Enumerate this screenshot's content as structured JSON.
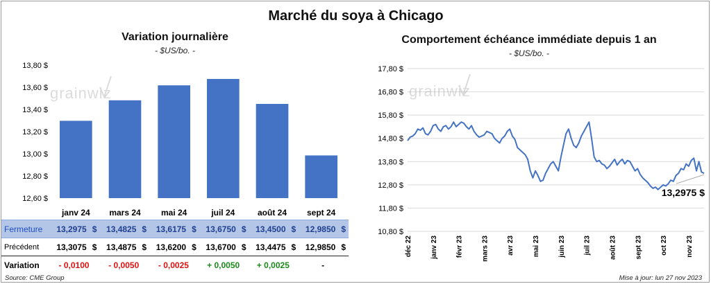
{
  "title": "Marché du soya à Chicago",
  "left_chart": {
    "title": "Variation  journalière",
    "subtitle": "- $US/bo. -"
  },
  "right_chart": {
    "title": "Comportement  échéance immédiate depuis 1 an",
    "subtitle": "- $US/bo. -",
    "last_value_label": "13,2975 $"
  },
  "watermark": "grainwiz",
  "chart_data": [
    {
      "type": "bar",
      "categories": [
        "janv 24",
        "mars 24",
        "mai 24",
        "juil 24",
        "août 24",
        "sept 24"
      ],
      "values": [
        13.2975,
        13.4825,
        13.6175,
        13.675,
        13.45,
        12.985
      ],
      "ylim": [
        12.6,
        13.8
      ],
      "yticks": [
        "12,60 $",
        "12,80 $",
        "13,00 $",
        "13,20 $",
        "13,40 $",
        "13,60 $",
        "13,80 $"
      ],
      "ytick_values": [
        12.6,
        12.8,
        13.0,
        13.2,
        13.4,
        13.6,
        13.8
      ],
      "color": "#4472c4",
      "grid": false
    },
    {
      "type": "line",
      "x_tick_labels": [
        "déc 22",
        "janv 23",
        "févr 23",
        "mars 23",
        "avr 23",
        "mai 23",
        "juin 23",
        "juil 23",
        "août 23",
        "sept 23",
        "oct 23",
        "nov 23"
      ],
      "ylim": [
        10.8,
        17.8
      ],
      "yticks": [
        "10,80 $",
        "11,80 $",
        "12,80 $",
        "13,80 $",
        "14,80 $",
        "15,80 $",
        "16,80 $",
        "17,80 $"
      ],
      "ytick_values": [
        10.8,
        11.8,
        12.8,
        13.8,
        14.8,
        15.8,
        16.8,
        17.8
      ],
      "color": "#4472c4",
      "grid": true,
      "x_range": [
        0,
        11.6
      ],
      "series": [
        {
          "x": [
            0.0,
            0.1,
            0.2,
            0.3,
            0.4,
            0.5,
            0.6,
            0.7,
            0.8,
            0.9,
            1.0,
            1.1,
            1.2,
            1.3,
            1.4,
            1.5,
            1.6,
            1.7,
            1.8,
            1.9,
            2.0,
            2.1,
            2.2,
            2.3,
            2.4,
            2.5,
            2.6,
            2.7,
            2.8,
            2.9,
            3.0,
            3.1,
            3.2,
            3.3,
            3.4,
            3.5,
            3.6,
            3.7,
            3.8,
            3.9,
            4.0,
            4.1,
            4.2,
            4.3,
            4.4,
            4.5,
            4.6,
            4.7,
            4.8,
            4.9,
            5.0,
            5.1,
            5.2,
            5.3,
            5.4,
            5.5,
            5.6,
            5.7,
            5.8,
            5.9,
            6.0,
            6.1,
            6.2,
            6.3,
            6.4,
            6.5,
            6.6,
            6.7,
            6.8,
            6.9,
            7.0,
            7.1,
            7.2,
            7.3,
            7.4,
            7.5,
            7.6,
            7.7,
            7.8,
            7.9,
            8.0,
            8.1,
            8.2,
            8.3,
            8.4,
            8.5,
            8.6,
            8.7,
            8.8,
            8.9,
            9.0,
            9.1,
            9.2,
            9.3,
            9.4,
            9.5,
            9.6,
            9.7,
            9.8,
            9.9,
            10.0,
            10.1,
            10.2,
            10.3,
            10.4,
            10.5,
            10.6,
            10.7,
            10.8,
            10.9,
            11.0,
            11.1,
            11.2,
            11.3,
            11.4,
            11.5,
            11.6
          ],
          "values": [
            14.7,
            14.85,
            14.9,
            15.0,
            15.2,
            15.15,
            15.25,
            15.0,
            14.95,
            15.1,
            15.35,
            15.4,
            15.2,
            15.1,
            15.3,
            15.35,
            15.2,
            15.3,
            15.5,
            15.3,
            15.4,
            15.5,
            15.45,
            15.3,
            15.2,
            15.35,
            15.1,
            14.95,
            14.85,
            14.9,
            14.95,
            15.1,
            15.05,
            15.0,
            14.8,
            14.7,
            14.6,
            14.8,
            14.9,
            15.1,
            15.2,
            14.9,
            14.75,
            14.4,
            14.3,
            14.2,
            14.1,
            13.9,
            13.4,
            13.1,
            13.4,
            13.2,
            12.95,
            13.0,
            13.3,
            13.5,
            13.7,
            13.8,
            13.6,
            13.4,
            14.0,
            14.5,
            15.0,
            15.2,
            14.8,
            14.5,
            14.4,
            14.6,
            14.9,
            15.1,
            15.3,
            15.5,
            14.8,
            14.0,
            13.8,
            13.85,
            13.7,
            13.65,
            13.5,
            13.6,
            13.75,
            13.9,
            13.65,
            13.8,
            13.9,
            13.7,
            13.85,
            13.8,
            13.6,
            13.4,
            13.5,
            13.25,
            13.1,
            13.0,
            12.9,
            12.75,
            12.65,
            12.7,
            12.6,
            12.7,
            12.8,
            12.75,
            12.85,
            13.0,
            12.95,
            13.2,
            13.3,
            13.5,
            13.45,
            13.7,
            13.6,
            13.85,
            13.95,
            13.4,
            13.8,
            13.35,
            13.2975
          ]
        }
      ]
    }
  ],
  "table": {
    "rows": [
      {
        "label": "Fermeture",
        "values": [
          "13,2975",
          "13,4825",
          "13,6175",
          "13,6750",
          "13,4500",
          "12,9850"
        ],
        "unit": "$"
      },
      {
        "label": "Précédent",
        "values": [
          "13,3075",
          "13,4875",
          "13,6200",
          "13,6700",
          "13,4475",
          "12,9850"
        ],
        "unit": "$"
      },
      {
        "label": "Variation",
        "values": [
          "- 0,0100",
          "- 0,0050",
          "- 0,0025",
          "+ 0,0050",
          "+ 0,0025",
          "-"
        ],
        "signs": [
          "neg",
          "neg",
          "neg",
          "pos",
          "pos",
          "none"
        ]
      }
    ]
  },
  "footer": {
    "source": "Source: CME Group",
    "updated": "Mise à jour: lun 27 nov 2023"
  }
}
